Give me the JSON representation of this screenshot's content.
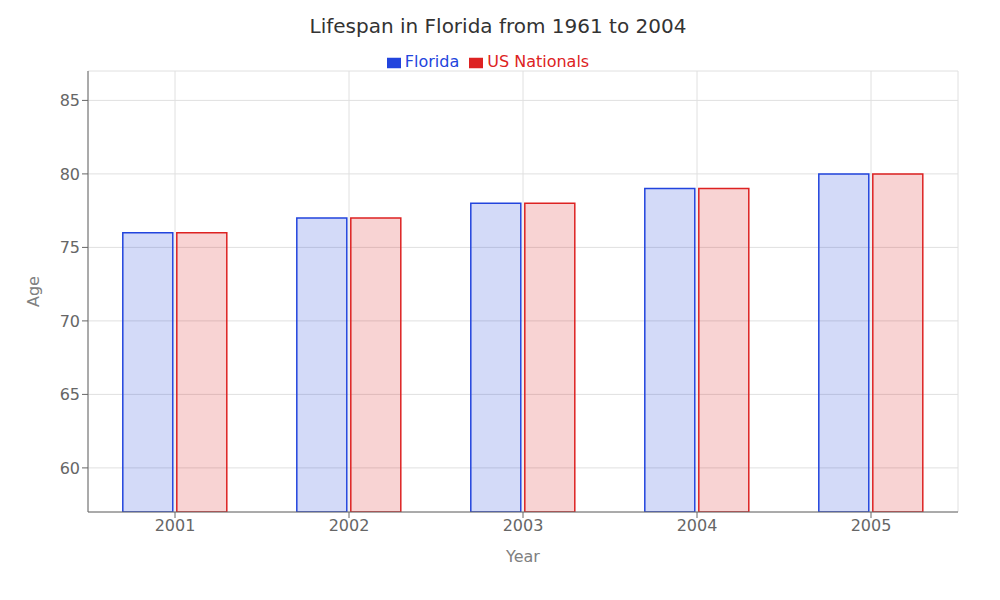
{
  "chart_data": {
    "type": "bar",
    "title": "Lifespan in Florida from 1961 to 2004",
    "xlabel": "Year",
    "ylabel": "Age",
    "categories": [
      "2001",
      "2002",
      "2003",
      "2004",
      "2005"
    ],
    "series": [
      {
        "name": "Florida",
        "color": "#2244dd",
        "values": [
          76,
          77,
          78,
          79,
          80
        ]
      },
      {
        "name": "US Nationals",
        "color": "#dd2222",
        "values": [
          76,
          77,
          78,
          79,
          80
        ]
      }
    ],
    "ylim": [
      57,
      87
    ],
    "yticks": [
      60,
      65,
      70,
      75,
      80,
      85
    ],
    "grid": true,
    "legend": "top"
  }
}
